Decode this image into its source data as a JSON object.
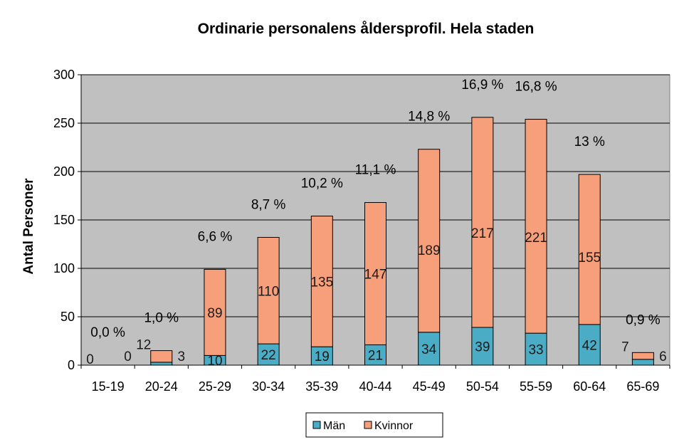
{
  "chart_data": {
    "type": "bar",
    "stacked": true,
    "title": "Ordinarie personalens åldersprofil. Hela staden",
    "xlabel": "",
    "ylabel": "Antal Personer",
    "ylim": [
      0,
      300
    ],
    "yticks": [
      0,
      50,
      100,
      150,
      200,
      250,
      300
    ],
    "grid": true,
    "legend_position": "bottom",
    "categories": [
      "15-19",
      "20-24",
      "25-29",
      "30-34",
      "35-39",
      "40-44",
      "45-49",
      "50-54",
      "55-59",
      "60-64",
      "65-69"
    ],
    "series": [
      {
        "name": "Män",
        "color": "#4BACC6",
        "values": [
          0,
          3,
          10,
          22,
          19,
          21,
          34,
          39,
          33,
          42,
          6
        ]
      },
      {
        "name": "Kvinnor",
        "color": "#F79F7A",
        "values": [
          0,
          12,
          89,
          110,
          135,
          147,
          189,
          217,
          221,
          155,
          7
        ]
      }
    ],
    "percent_labels": [
      "0,0 %",
      "1,0 %",
      "6,6 %",
      "8,7 %",
      "10,2 %",
      "11,1 %",
      "14,8 %",
      "16,9 %",
      "16,8 %",
      "13 %",
      "0,9 %"
    ],
    "plot_background": "#C0C0C0"
  }
}
